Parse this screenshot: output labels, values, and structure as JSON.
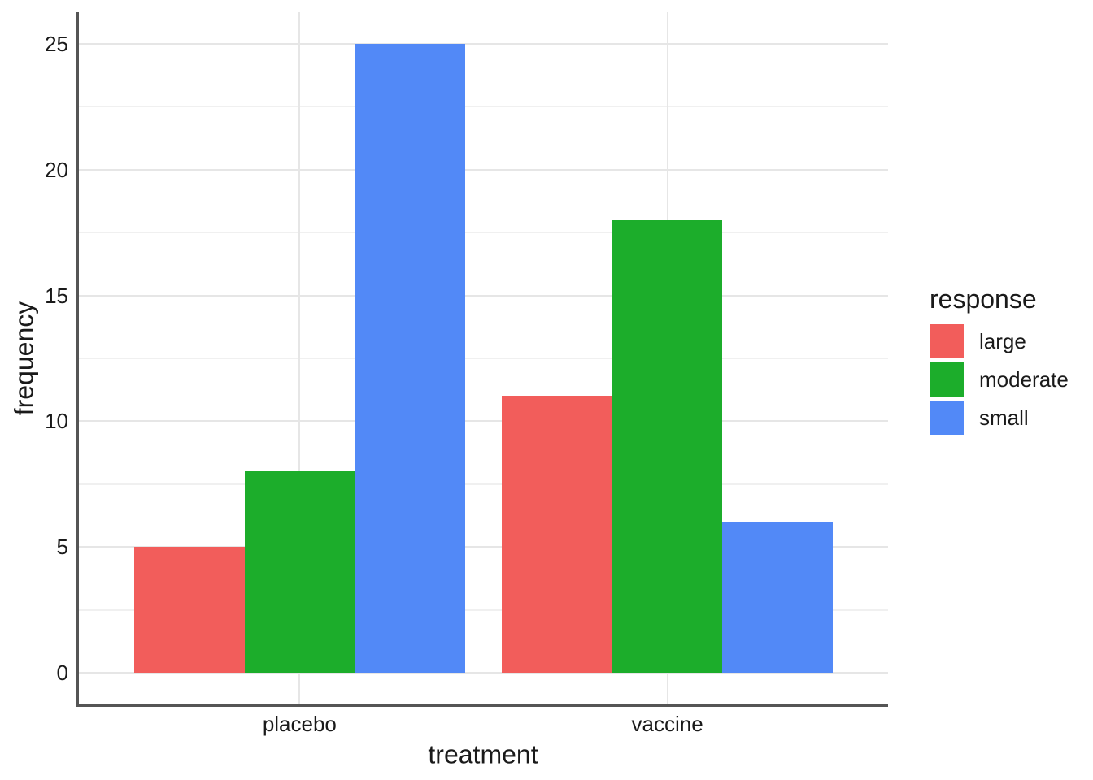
{
  "chart_data": {
    "type": "bar",
    "title": "",
    "xlabel": "treatment",
    "ylabel": "frequency",
    "legend_title": "response",
    "legend_position": "right",
    "grid": true,
    "categories": [
      "placebo",
      "vaccine"
    ],
    "series": [
      {
        "name": "large",
        "color": "#F25D5B",
        "values": [
          5,
          11
        ]
      },
      {
        "name": "moderate",
        "color": "#1CAD2B",
        "values": [
          8,
          18
        ]
      },
      {
        "name": "small",
        "color": "#5289F7",
        "values": [
          25,
          6
        ]
      }
    ],
    "y_ticks": [
      0,
      5,
      10,
      15,
      20,
      25
    ],
    "y_minor_ticks": [
      2.5,
      7.5,
      12.5,
      17.5,
      22.5
    ],
    "ylim": [
      0,
      25
    ],
    "colors": {
      "axis_line": "#555555",
      "grid_major": "#E6E6E6",
      "grid_minor": "#F0F0F0",
      "text": "#1A1A1A"
    }
  }
}
